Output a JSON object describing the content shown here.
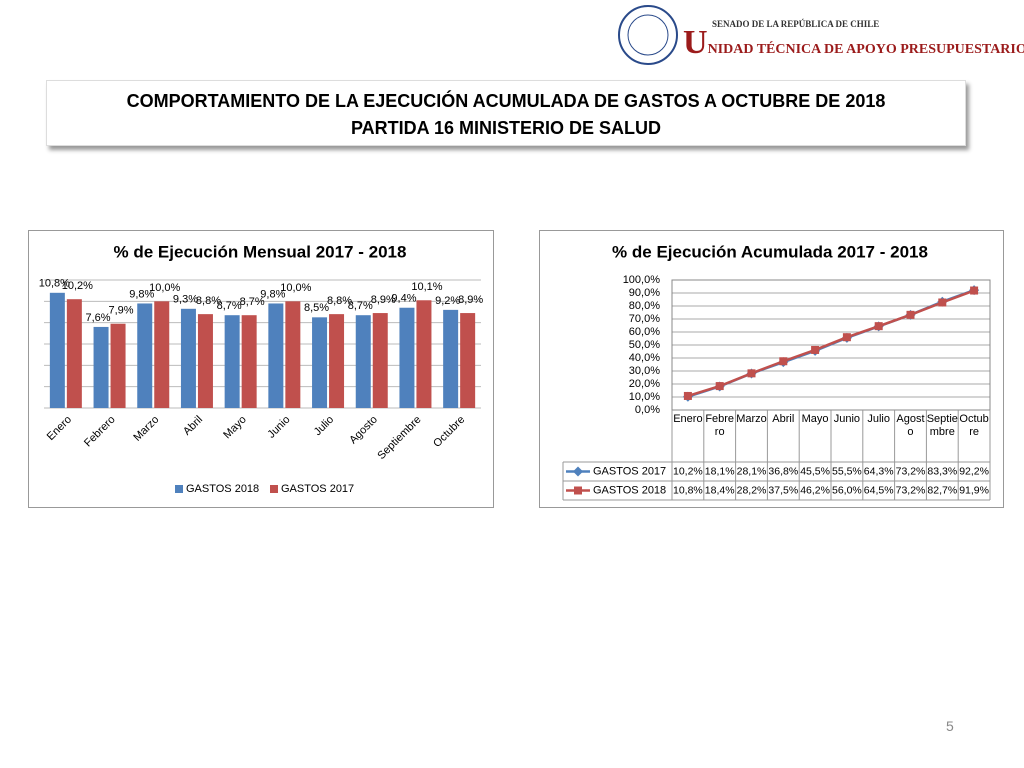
{
  "header": {
    "org": "SENADO DE LA REPÚBLICA DE CHILE",
    "unit": "UNIDAD TÉCNICA DE APOYO PRESUPUESTARIO"
  },
  "slide_title": [
    "COMPORTAMIENTO DE LA EJECUCIÓN ACUMULADA DE GASTOS A OCTUBRE DE 2018",
    "PARTIDA 16 MINISTERIO DE SALUD"
  ],
  "chart_data": [
    {
      "type": "bar",
      "title": "% de Ejecución Mensual 2017 - 2018",
      "categories": [
        "Enero",
        "Febrero",
        "Marzo",
        "Abril",
        "Mayo",
        "Junio",
        "Julio",
        "Agosto",
        "Septiembre",
        "Octubre"
      ],
      "series": [
        {
          "name": "GASTOS 2018",
          "color": "#4f81bd",
          "values": [
            10.8,
            7.6,
            9.8,
            9.3,
            8.7,
            9.8,
            8.5,
            8.7,
            9.4,
            9.2
          ],
          "value_labels": [
            "10,8%",
            "7,6%",
            "9,8%",
            "9,3%",
            "8,7%",
            "9,8%",
            "8,5%",
            "8,7%",
            "9,4%",
            "9,2%"
          ]
        },
        {
          "name": "GASTOS 2017",
          "color": "#c0504d",
          "values": [
            10.2,
            7.9,
            10.0,
            8.8,
            8.7,
            10.0,
            8.8,
            8.9,
            10.1,
            8.9
          ],
          "value_labels": [
            "10,2%",
            "7,9%",
            "10,0%",
            "8,8%",
            "8,7%",
            "10,0%",
            "8,8%",
            "8,9%",
            "10,1%",
            "8,9%"
          ]
        }
      ],
      "ylim": [
        0,
        12
      ],
      "yticks": [
        0,
        2,
        4,
        6,
        8,
        10,
        12
      ],
      "grid": true,
      "show_ytick_labels": false,
      "legend": "bottom"
    },
    {
      "type": "line",
      "title": "% de Ejecución Acumulada 2017 - 2018",
      "categories": [
        "Enero",
        "Febrero",
        "Marzo",
        "Abril",
        "Mayo",
        "Junio",
        "Julio",
        "Agosto",
        "Septiembre",
        "Octubre"
      ],
      "series": [
        {
          "name": "GASTOS 2017",
          "color": "#4f81bd",
          "marker": "diamond",
          "values": [
            10.2,
            18.1,
            28.1,
            36.8,
            45.5,
            55.5,
            64.3,
            73.2,
            83.3,
            92.2
          ],
          "value_labels": [
            "10,2%",
            "18,1%",
            "28,1%",
            "36,8%",
            "45,5%",
            "55,5%",
            "64,3%",
            "73,2%",
            "83,3%",
            "92,2%"
          ]
        },
        {
          "name": "GASTOS 2018",
          "color": "#c0504d",
          "marker": "square",
          "values": [
            10.8,
            18.4,
            28.2,
            37.5,
            46.2,
            56.0,
            64.5,
            73.2,
            82.7,
            91.9
          ],
          "value_labels": [
            "10,8%",
            "18,4%",
            "28,2%",
            "37,5%",
            "46,2%",
            "56,0%",
            "64,5%",
            "73,2%",
            "82,7%",
            "91,9%"
          ]
        }
      ],
      "ylim": [
        0,
        100
      ],
      "yticks": [
        {
          "value": 0,
          "label": "0,0%"
        },
        {
          "value": 10,
          "label": "10,0%"
        },
        {
          "value": 20,
          "label": "20,0%"
        },
        {
          "value": 30,
          "label": "30,0%"
        },
        {
          "value": 40,
          "label": "40,0%"
        },
        {
          "value": 50,
          "label": "50,0%"
        },
        {
          "value": 60,
          "label": "60,0%"
        },
        {
          "value": 70,
          "label": "70,0%"
        },
        {
          "value": 80,
          "label": "80,0%"
        },
        {
          "value": 90,
          "label": "90,0%"
        },
        {
          "value": 100,
          "label": "100,0%"
        }
      ],
      "grid": true,
      "legend": "data-table"
    }
  ],
  "page_number": 5
}
